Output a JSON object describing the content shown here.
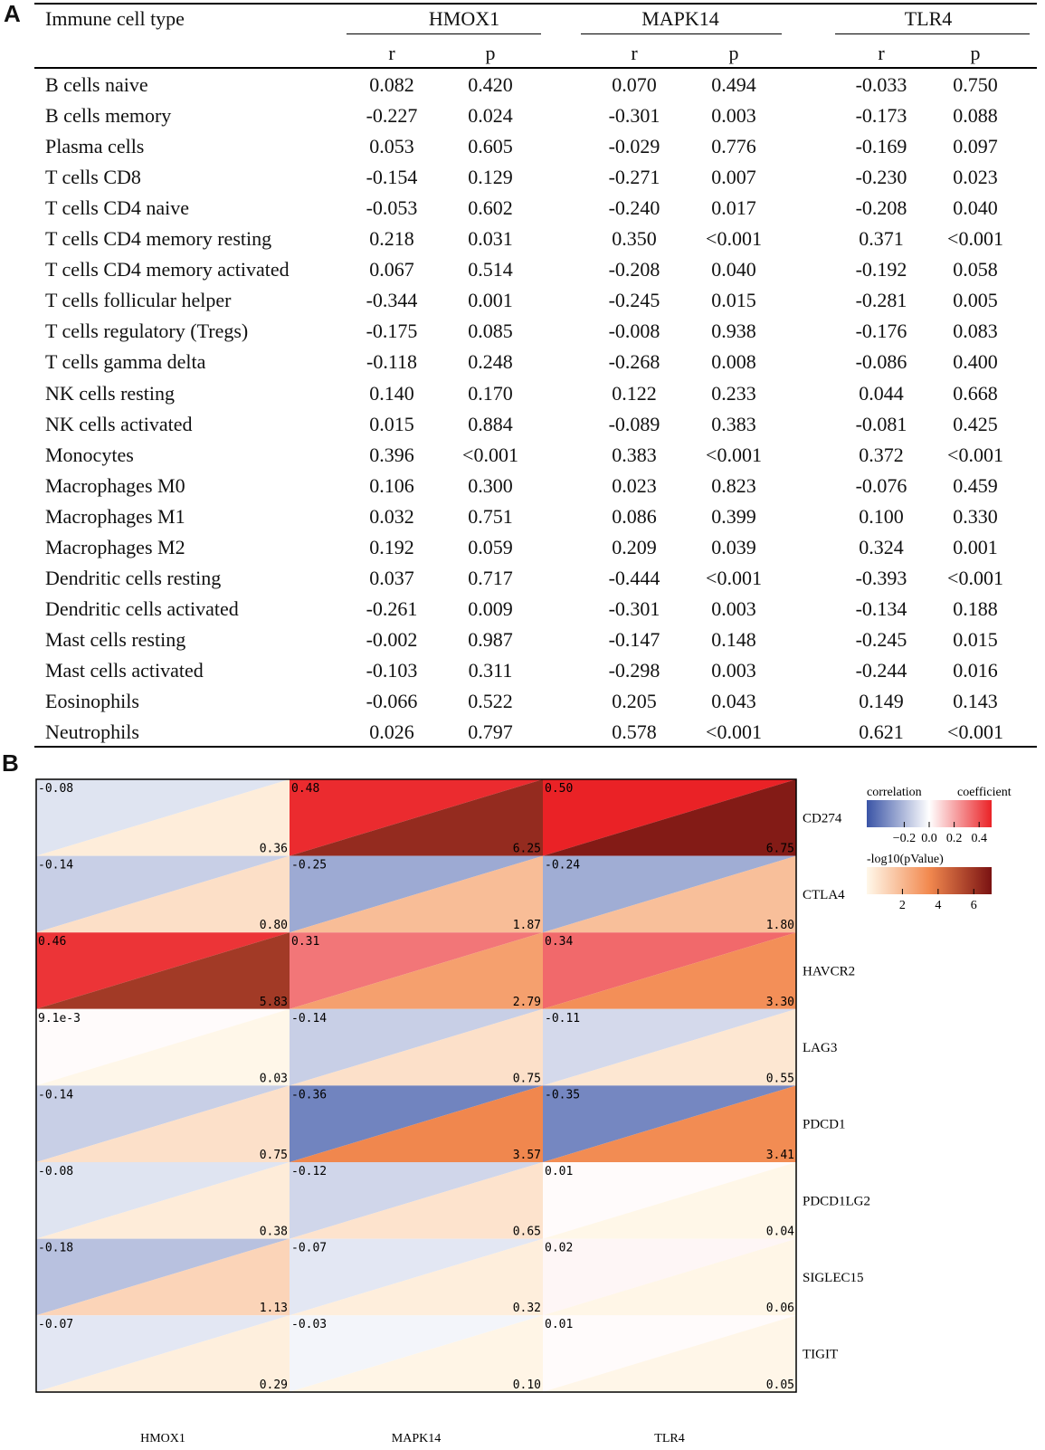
{
  "panel_a_label": "A",
  "panel_b_label": "B",
  "table": {
    "first_header": "Immune cell type",
    "genes": [
      "HMOX1",
      "MAPK14",
      "TLR4"
    ],
    "sub_r": "r",
    "sub_p": "p",
    "rows": [
      {
        "cell": "B cells naive",
        "vals": [
          "0.082",
          "0.420",
          "0.070",
          "0.494",
          "-0.033",
          "0.750"
        ]
      },
      {
        "cell": "B cells memory",
        "vals": [
          "-0.227",
          "0.024",
          "-0.301",
          "0.003",
          "-0.173",
          "0.088"
        ]
      },
      {
        "cell": "Plasma cells",
        "vals": [
          "0.053",
          "0.605",
          "-0.029",
          "0.776",
          "-0.169",
          "0.097"
        ]
      },
      {
        "cell": "T cells CD8",
        "vals": [
          "-0.154",
          "0.129",
          "-0.271",
          "0.007",
          "-0.230",
          "0.023"
        ]
      },
      {
        "cell": "T cells CD4 naive",
        "vals": [
          "-0.053",
          "0.602",
          "-0.240",
          "0.017",
          "-0.208",
          "0.040"
        ]
      },
      {
        "cell": "T cells CD4 memory resting",
        "vals": [
          "0.218",
          "0.031",
          "0.350",
          "<0.001",
          "0.371",
          "<0.001"
        ]
      },
      {
        "cell": "T cells CD4 memory activated",
        "vals": [
          "0.067",
          "0.514",
          "-0.208",
          "0.040",
          "-0.192",
          "0.058"
        ]
      },
      {
        "cell": "T cells follicular helper",
        "vals": [
          "-0.344",
          "0.001",
          "-0.245",
          "0.015",
          "-0.281",
          "0.005"
        ]
      },
      {
        "cell": "T cells regulatory (Tregs)",
        "vals": [
          "-0.175",
          "0.085",
          "-0.008",
          "0.938",
          "-0.176",
          "0.083"
        ]
      },
      {
        "cell": "T cells gamma delta",
        "vals": [
          "-0.118",
          "0.248",
          "-0.268",
          "0.008",
          "-0.086",
          "0.400"
        ]
      },
      {
        "cell": "NK cells resting",
        "vals": [
          "0.140",
          "0.170",
          "0.122",
          "0.233",
          "0.044",
          "0.668"
        ]
      },
      {
        "cell": "NK cells activated",
        "vals": [
          "0.015",
          "0.884",
          "-0.089",
          "0.383",
          "-0.081",
          "0.425"
        ]
      },
      {
        "cell": "Monocytes",
        "vals": [
          "0.396",
          "<0.001",
          "0.383",
          "<0.001",
          "0.372",
          "<0.001"
        ]
      },
      {
        "cell": "Macrophages M0",
        "vals": [
          "0.106",
          "0.300",
          "0.023",
          "0.823",
          "-0.076",
          "0.459"
        ]
      },
      {
        "cell": "Macrophages M1",
        "vals": [
          "0.032",
          "0.751",
          "0.086",
          "0.399",
          "0.100",
          "0.330"
        ]
      },
      {
        "cell": "Macrophages M2",
        "vals": [
          "0.192",
          "0.059",
          "0.209",
          "0.039",
          "0.324",
          "0.001"
        ]
      },
      {
        "cell": "Dendritic cells resting",
        "vals": [
          "0.037",
          "0.717",
          "-0.444",
          "<0.001",
          "-0.393",
          "<0.001"
        ]
      },
      {
        "cell": "Dendritic cells activated",
        "vals": [
          "-0.261",
          "0.009",
          "-0.301",
          "0.003",
          "-0.134",
          "0.188"
        ]
      },
      {
        "cell": "Mast cells resting",
        "vals": [
          "-0.002",
          "0.987",
          "-0.147",
          "0.148",
          "-0.245",
          "0.015"
        ]
      },
      {
        "cell": "Mast cells activated",
        "vals": [
          "-0.103",
          "0.311",
          "-0.298",
          "0.003",
          "-0.244",
          "0.016"
        ]
      },
      {
        "cell": "Eosinophils",
        "vals": [
          "-0.066",
          "0.522",
          "0.205",
          "0.043",
          "0.149",
          "0.143"
        ]
      },
      {
        "cell": "Neutrophils",
        "vals": [
          "0.026",
          "0.797",
          "0.578",
          "<0.001",
          "0.621",
          "<0.001"
        ]
      }
    ]
  },
  "chart_data": {
    "type": "heatmap",
    "columns": [
      "HMOX1",
      "MAPK14",
      "TLR4"
    ],
    "rows": [
      "CD274",
      "CTLA4",
      "HAVCR2",
      "LAG3",
      "PDCD1",
      "PDCD1LG2",
      "SIGLEC15",
      "TIGIT"
    ],
    "correlation_labels": [
      [
        "-0.08",
        "0.48",
        "0.50"
      ],
      [
        "-0.14",
        "-0.25",
        "-0.24"
      ],
      [
        "0.46",
        "0.31",
        "0.34"
      ],
      [
        "9.1e-3",
        "-0.14",
        "-0.11"
      ],
      [
        "-0.14",
        "-0.36",
        "-0.35"
      ],
      [
        "-0.08",
        "-0.12",
        "0.01"
      ],
      [
        "-0.18",
        "-0.07",
        "0.02"
      ],
      [
        "-0.07",
        "-0.03",
        "0.01"
      ]
    ],
    "neglog10p_labels": [
      [
        "0.36",
        "6.25",
        "6.75"
      ],
      [
        "0.80",
        "1.87",
        "1.80"
      ],
      [
        "5.83",
        "2.79",
        "3.30"
      ],
      [
        "0.03",
        "0.75",
        "0.55"
      ],
      [
        "0.75",
        "3.57",
        "3.41"
      ],
      [
        "0.38",
        "0.65",
        "0.04"
      ],
      [
        "1.13",
        "0.32",
        "0.06"
      ],
      [
        "0.29",
        "0.10",
        "0.05"
      ]
    ],
    "correlation": [
      [
        -0.08,
        0.48,
        0.5
      ],
      [
        -0.14,
        -0.25,
        -0.24
      ],
      [
        0.46,
        0.31,
        0.34
      ],
      [
        0.0091,
        -0.14,
        -0.11
      ],
      [
        -0.14,
        -0.36,
        -0.35
      ],
      [
        -0.08,
        -0.12,
        0.01
      ],
      [
        -0.18,
        -0.07,
        0.02
      ],
      [
        -0.07,
        -0.03,
        0.01
      ]
    ],
    "neglog10p": [
      [
        0.36,
        6.25,
        6.75
      ],
      [
        0.8,
        1.87,
        1.8
      ],
      [
        5.83,
        2.79,
        3.3
      ],
      [
        0.03,
        0.75,
        0.55
      ],
      [
        0.75,
        3.57,
        3.41
      ],
      [
        0.38,
        0.65,
        0.04
      ],
      [
        1.13,
        0.32,
        0.06
      ],
      [
        0.29,
        0.1,
        0.05
      ]
    ],
    "legend_corr": {
      "title_left": "correlation",
      "title_right": "coefficient",
      "ticks": [
        "−0.2",
        "0.0",
        "0.2",
        "0.4"
      ],
      "tick_values": [
        -0.2,
        0.0,
        0.2,
        0.4
      ],
      "range": [
        -0.5,
        0.5
      ]
    },
    "legend_p": {
      "title": "-log10(pValue)",
      "ticks": [
        "2",
        "4",
        "6"
      ],
      "tick_values": [
        2,
        4,
        6
      ],
      "range": [
        0,
        7
      ]
    },
    "colors": {
      "corr_neg": "#3a54a6",
      "corr_zero": "#ffffff",
      "corr_pos": "#ea2226",
      "p_low": "#fff8ea",
      "p_mid": "#f2894f",
      "p_high": "#7a1212"
    }
  }
}
